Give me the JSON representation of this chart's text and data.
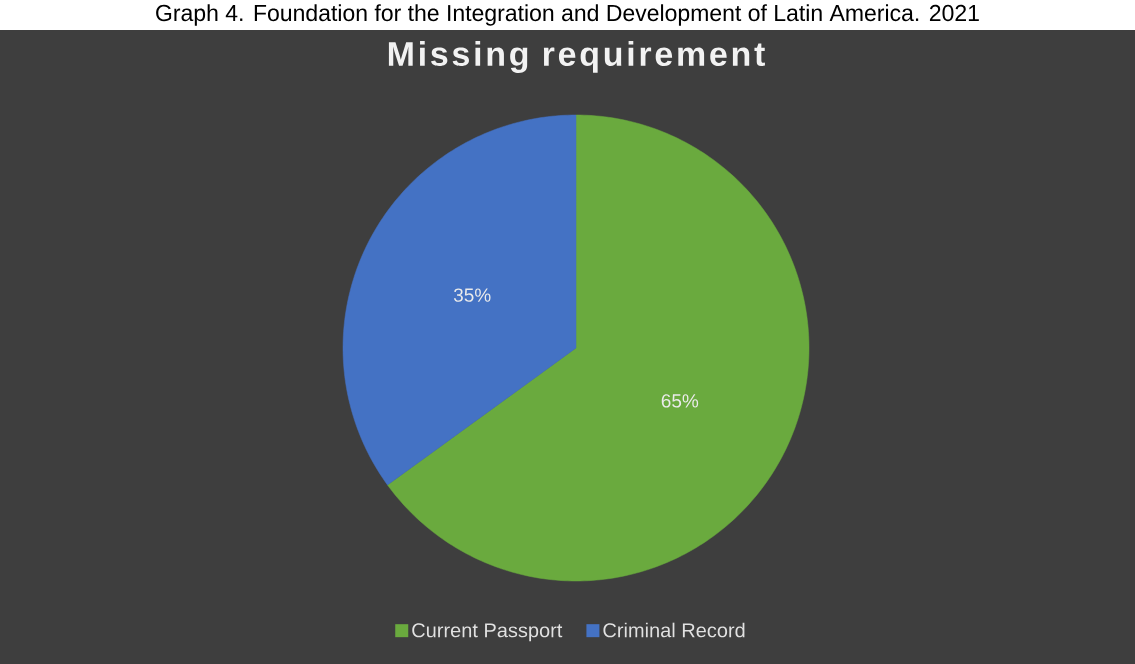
{
  "chart_data": {
    "type": "pie",
    "title": "Missing requirement",
    "annotations": [
      "Graph 4. Foundation for the Integration and Development of Latin America. 2021"
    ],
    "categories": [
      "Current Passport",
      "Criminal Record"
    ],
    "values": [
      65,
      35
    ],
    "value_labels": [
      "65%",
      "35%"
    ],
    "colors": [
      "#6aaa3e",
      "#4472c4"
    ],
    "legend": "bottom"
  }
}
